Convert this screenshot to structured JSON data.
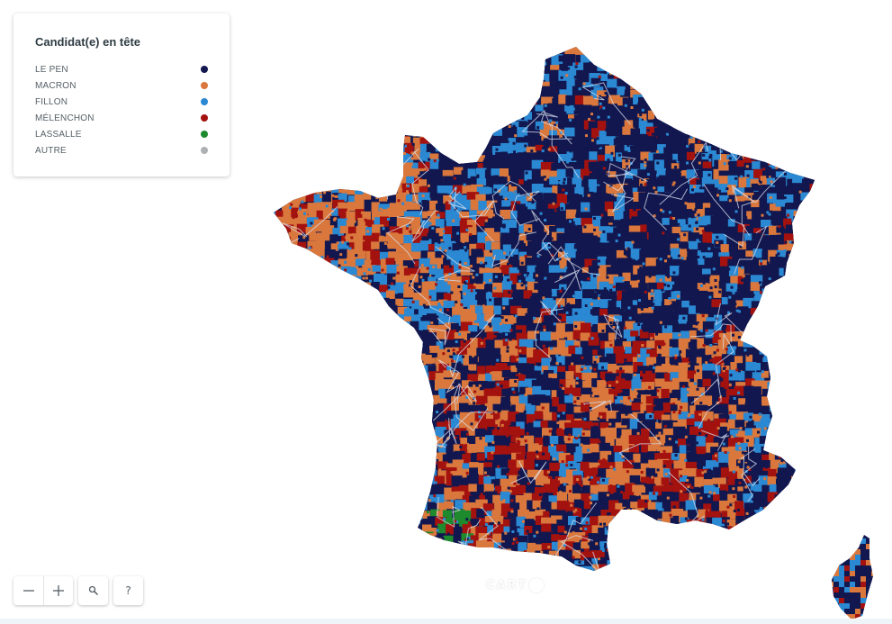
{
  "legend": {
    "title": "Candidat(e) en tête",
    "items": [
      {
        "label": "LE PEN",
        "color": "#12174f"
      },
      {
        "label": "MACRON",
        "color": "#d9773c"
      },
      {
        "label": "FILLON",
        "color": "#2b88d2"
      },
      {
        "label": "MÉLENCHON",
        "color": "#a3120f"
      },
      {
        "label": "LASSALLE",
        "color": "#1e8a2e"
      },
      {
        "label": "AUTRE",
        "color": "#aeb0b3"
      }
    ]
  },
  "controls": {
    "zoom_out_icon": "minus-icon",
    "zoom_in_icon": "plus-icon",
    "search_icon": "search-icon",
    "help_label": "?"
  },
  "attribution": {
    "logo_text": "CART"
  }
}
